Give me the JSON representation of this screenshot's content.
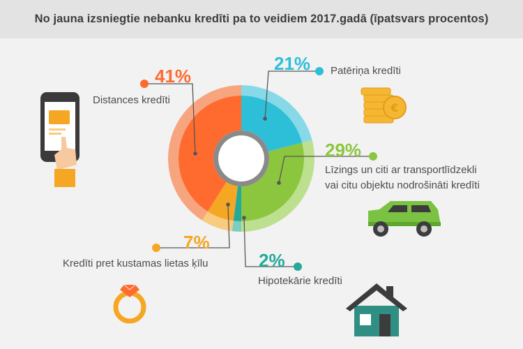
{
  "chart_data": {
    "type": "pie",
    "title": "No jauna izsniegtie nebanku kredīti pa to veidiem 2017.gadā (īpatsvars procentos)",
    "categories": [
      "Patēriņa kredīti",
      "Līzings un citi ar transportlīdzekli vai citu objektu nodrošināti kredīti",
      "Hipotekārie kredīti",
      "Kredīti pret kustamas lietas ķīlu",
      "Distances kredīti"
    ],
    "values": [
      21,
      29,
      2,
      7,
      41
    ],
    "value_labels": [
      "21%",
      "29%",
      "2%",
      "7%",
      "41%"
    ],
    "label_lines": [
      [
        "Patēriņa kredīti"
      ],
      [
        "Līzings un citi ar transportlīdzekli",
        "vai citu objektu nodrošināti kredīti"
      ],
      [
        "Hipotekārie kredīti"
      ],
      [
        "Kredīti pret kustamas lietas ķīlu"
      ],
      [
        "Distances kredīti"
      ]
    ],
    "colors": [
      "#2ebfd8",
      "#8cc63f",
      "#26a99a",
      "#f5a623",
      "#ff6a2f"
    ],
    "shade_colors": [
      "#87d9e8",
      "#bde08f",
      "#7ccdc2",
      "#f8cb7e",
      "#f7a57e"
    ],
    "start_angle_deg": 0,
    "direction": "clockwise"
  },
  "icons": {
    "phone": "phone-hand-icon",
    "coins": "coins-icon",
    "car": "car-icon",
    "ring": "ring-icon",
    "house": "house-icon"
  }
}
